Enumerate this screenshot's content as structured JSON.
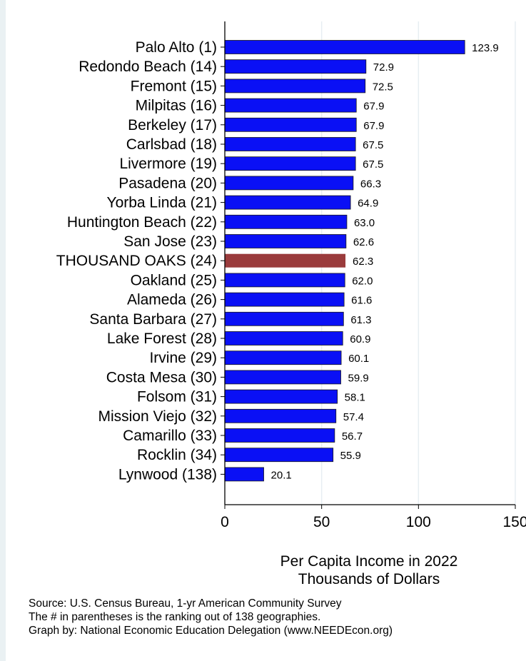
{
  "chart_data": {
    "type": "bar",
    "orientation": "horizontal",
    "categories": [
      "Palo Alto  (1)",
      "Redondo Beach (14)",
      "Fremont (15)",
      "Milpitas (16)",
      "Berkeley (17)",
      "Carlsbad (18)",
      "Livermore (19)",
      "Pasadena (20)",
      "Yorba Linda (21)",
      "Huntington Beach (22)",
      "San Jose (23)",
      "THOUSAND OAKS (24)",
      "Oakland (25)",
      "Alameda (26)",
      "Santa Barbara (27)",
      "Lake Forest (28)",
      "Irvine (29)",
      "Costa Mesa (30)",
      "Folsom (31)",
      "Mission Viejo (32)",
      "Camarillo (33)",
      "Rocklin (34)",
      "Lynwood (138)"
    ],
    "values": [
      123.9,
      72.9,
      72.5,
      67.9,
      67.9,
      67.5,
      67.5,
      66.3,
      64.9,
      63.0,
      62.6,
      62.3,
      62.0,
      61.6,
      61.3,
      60.9,
      60.1,
      59.9,
      58.1,
      57.4,
      56.7,
      55.9,
      20.1
    ],
    "value_labels": [
      "123.9",
      "72.9",
      "72.5",
      "67.9",
      "67.9",
      "67.5",
      "67.5",
      "66.3",
      "64.9",
      "63.0",
      "62.6",
      "62.3",
      "62.0",
      "61.6",
      "61.3",
      "60.9",
      "60.1",
      "59.9",
      "58.1",
      "57.4",
      "56.7",
      "55.9",
      "20.1"
    ],
    "highlight_index": 11,
    "xlabel_lines": [
      "Per Capita Income in 2022",
      "Thousands of Dollars"
    ],
    "xlim": [
      0,
      150
    ],
    "xticks": [
      "0",
      "50",
      "100",
      "150"
    ],
    "grid": true,
    "colors": {
      "bar": "#0a10f5",
      "bar_border": "#1a1a1a",
      "highlight": "#9a3b3c",
      "grid": "#e7eef2"
    }
  },
  "notes": [
    "Source: U.S. Census Bureau, 1-yr American Community Survey",
    "The # in parentheses is the ranking out of 138 geographies.",
    "Graph by: National Economic Education Delegation (www.NEEDEcon.org)"
  ]
}
